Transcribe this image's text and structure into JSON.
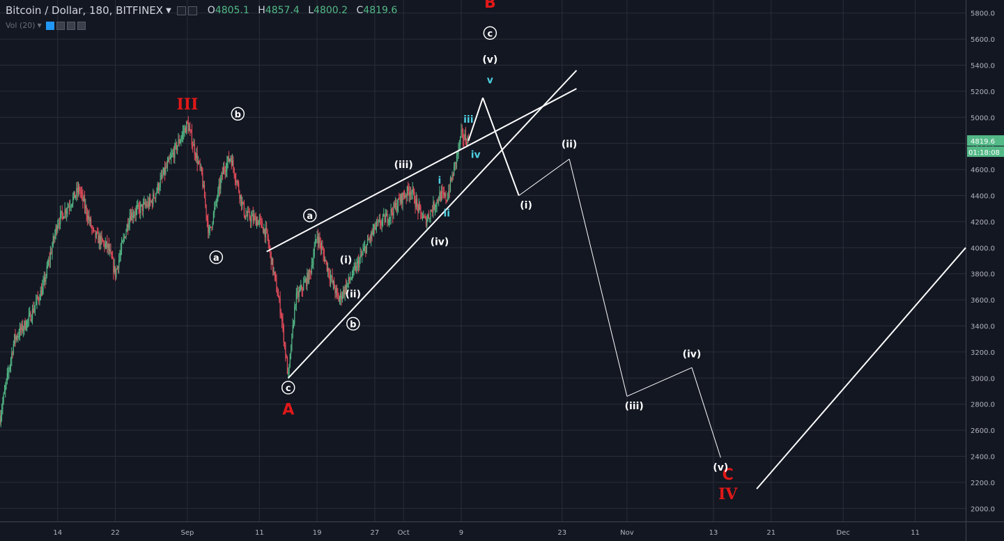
{
  "legend": {
    "symbol": "Bitcoin / Dollar, 180, BITFINEX",
    "open_label": "O",
    "open": "4805.1",
    "high_label": "H",
    "high": "4857.4",
    "low_label": "L",
    "low": "4800.2",
    "close_label": "C",
    "close": "4819.6",
    "volume_label": "Vol (20)"
  },
  "colors": {
    "background": "#131722",
    "grid": "#2a2e39",
    "axis_text": "#b2b5be",
    "up": "#53b987",
    "down": "#eb4d5c",
    "wave_white": "#ffffff",
    "wave_cyan": "#4dd0e1",
    "wave_red": "#e01818",
    "price_tag": "#53b987"
  },
  "price_tag": {
    "price": "4819.6",
    "countdown": "01:18:08"
  },
  "chart_data": {
    "type": "candlestick",
    "xlabel": "",
    "ylabel": "",
    "ylim": [
      1900,
      5900
    ],
    "y_ticks": [
      2000,
      2200,
      2400,
      2600,
      2800,
      3000,
      3200,
      3400,
      3600,
      3800,
      4000,
      4200,
      4400,
      4600,
      4800,
      5000,
      5200,
      5400,
      5600,
      5800
    ],
    "y_tick_labels": [
      "2000.0",
      "2200.0",
      "2400.0",
      "2600.0",
      "2800.0",
      "3000.0",
      "3200.0",
      "3400.0",
      "3600.0",
      "3800.0",
      "4000.0",
      "4200.0",
      "4400.0",
      "4600.0",
      "4800.0",
      "5000.0",
      "5200.0",
      "5400.0",
      "5600.0",
      "5800.0"
    ],
    "x_range": [
      "2017-08-06",
      "2017-12-18"
    ],
    "x_ticks": [
      {
        "date": "2017-08-14",
        "label": "14"
      },
      {
        "date": "2017-08-22",
        "label": "22"
      },
      {
        "date": "2017-09-01",
        "label": "Sep"
      },
      {
        "date": "2017-09-11",
        "label": "11"
      },
      {
        "date": "2017-09-19",
        "label": "19"
      },
      {
        "date": "2017-09-27",
        "label": "27"
      },
      {
        "date": "2017-10-01",
        "label": "Oct"
      },
      {
        "date": "2017-10-09",
        "label": "9"
      },
      {
        "date": "2017-10-23",
        "label": "23"
      },
      {
        "date": "2017-11-01",
        "label": "Nov"
      },
      {
        "date": "2017-11-13",
        "label": "13"
      },
      {
        "date": "2017-11-21",
        "label": "21"
      },
      {
        "date": "2017-12-01",
        "label": "Dec"
      },
      {
        "date": "2017-12-11",
        "label": "11"
      }
    ],
    "price_path": [
      [
        "2017-08-06",
        2700
      ],
      [
        "2017-08-08",
        3300
      ],
      [
        "2017-08-10",
        3450
      ],
      [
        "2017-08-12",
        3700
      ],
      [
        "2017-08-14",
        4200
      ],
      [
        "2017-08-17",
        4450
      ],
      [
        "2017-08-19",
        4100
      ],
      [
        "2017-08-21",
        4000
      ],
      [
        "2017-08-22",
        3800
      ],
      [
        "2017-08-24",
        4250
      ],
      [
        "2017-08-27",
        4350
      ],
      [
        "2017-08-29",
        4600
      ],
      [
        "2017-09-01",
        4950
      ],
      [
        "2017-09-03",
        4550
      ],
      [
        "2017-09-04",
        4100
      ],
      [
        "2017-09-06",
        4600
      ],
      [
        "2017-09-07",
        4700
      ],
      [
        "2017-09-09",
        4250
      ],
      [
        "2017-09-11",
        4200
      ],
      [
        "2017-09-12",
        4100
      ],
      [
        "2017-09-14",
        3500
      ],
      [
        "2017-09-15",
        3000
      ],
      [
        "2017-09-16",
        3600
      ],
      [
        "2017-09-18",
        3800
      ],
      [
        "2017-09-19",
        4100
      ],
      [
        "2017-09-21",
        3750
      ],
      [
        "2017-09-22",
        3600
      ],
      [
        "2017-09-24",
        3800
      ],
      [
        "2017-09-27",
        4150
      ],
      [
        "2017-09-29",
        4250
      ],
      [
        "2017-10-01",
        4400
      ],
      [
        "2017-10-02",
        4450
      ],
      [
        "2017-10-03",
        4300
      ],
      [
        "2017-10-04",
        4200
      ],
      [
        "2017-10-06",
        4400
      ],
      [
        "2017-10-07",
        4380
      ],
      [
        "2017-10-08",
        4600
      ],
      [
        "2017-10-09",
        4860
      ],
      [
        "2017-10-10",
        4820
      ]
    ],
    "lines": [
      {
        "from": [
          "2017-09-12",
          3970
        ],
        "to": [
          "2017-10-25",
          5220
        ]
      },
      {
        "from": [
          "2017-09-15",
          3000
        ],
        "to": [
          "2017-10-25",
          5360
        ]
      },
      {
        "from": [
          "2017-10-10",
          4820
        ],
        "to": [
          "2017-10-12",
          5150
        ]
      },
      {
        "from": [
          "2017-10-12",
          5150
        ],
        "to": [
          "2017-10-17",
          4400
        ]
      },
      {
        "from": [
          "2017-10-17",
          4400
        ],
        "to": [
          "2017-10-24",
          4680
        ]
      },
      {
        "from": [
          "2017-10-24",
          4680
        ],
        "to": [
          "2017-11-01",
          2860
        ]
      },
      {
        "from": [
          "2017-11-01",
          2860
        ],
        "to": [
          "2017-11-10",
          3080
        ]
      },
      {
        "from": [
          "2017-11-10",
          3080
        ],
        "to": [
          "2017-11-14",
          2390
        ]
      },
      {
        "from": [
          "2017-11-19",
          2150
        ],
        "to": [
          "2017-12-18",
          4000
        ]
      }
    ],
    "annotations": [
      {
        "text": "III",
        "date": "2017-09-01",
        "price": 5060,
        "color": "red",
        "style": "roman"
      },
      {
        "text": "B",
        "date": "2017-10-13",
        "price": 5840,
        "color": "red"
      },
      {
        "text": "A",
        "date": "2017-09-15",
        "price": 2720,
        "color": "red"
      },
      {
        "text": "C",
        "date": "2017-11-15",
        "price": 2220,
        "color": "red"
      },
      {
        "text": "IV",
        "date": "2017-11-15",
        "price": 2070,
        "color": "red",
        "style": "roman"
      },
      {
        "text": "c",
        "date": "2017-10-13",
        "price": 5620,
        "color": "white",
        "circled": true
      },
      {
        "text": "(v)",
        "date": "2017-10-13",
        "price": 5420,
        "color": "white"
      },
      {
        "text": "v",
        "date": "2017-10-13",
        "price": 5260,
        "color": "cyan"
      },
      {
        "text": "iii",
        "date": "2017-10-10",
        "price": 4960,
        "color": "cyan"
      },
      {
        "text": "iv",
        "date": "2017-10-11",
        "price": 4690,
        "color": "cyan"
      },
      {
        "text": "(iii)",
        "date": "2017-10-01",
        "price": 4610,
        "color": "white"
      },
      {
        "text": "i",
        "date": "2017-10-06",
        "price": 4490,
        "color": "cyan"
      },
      {
        "text": "ii",
        "date": "2017-10-07",
        "price": 4240,
        "color": "cyan"
      },
      {
        "text": "(iv)",
        "date": "2017-10-06",
        "price": 4020,
        "color": "white"
      },
      {
        "text": "a",
        "date": "2017-09-18",
        "price": 4220,
        "color": "white",
        "circled": true
      },
      {
        "text": "(i)",
        "date": "2017-09-23",
        "price": 3880,
        "color": "white"
      },
      {
        "text": "(ii)",
        "date": "2017-09-24",
        "price": 3620,
        "color": "white"
      },
      {
        "text": "b",
        "date": "2017-09-24",
        "price": 3390,
        "color": "white",
        "circled": true
      },
      {
        "text": "b",
        "date": "2017-09-08",
        "price": 5000,
        "color": "white",
        "circled": true
      },
      {
        "text": "a",
        "date": "2017-09-05",
        "price": 3900,
        "color": "white",
        "circled": true
      },
      {
        "text": "c",
        "date": "2017-09-15",
        "price": 2900,
        "color": "white",
        "circled": true
      },
      {
        "text": "(i)",
        "date": "2017-10-18",
        "price": 4300,
        "color": "white"
      },
      {
        "text": "(ii)",
        "date": "2017-10-24",
        "price": 4770,
        "color": "white"
      },
      {
        "text": "(iii)",
        "date": "2017-11-02",
        "price": 2760,
        "color": "white"
      },
      {
        "text": "(iv)",
        "date": "2017-11-10",
        "price": 3160,
        "color": "white"
      },
      {
        "text": "(v)",
        "date": "2017-11-14",
        "price": 2290,
        "color": "white"
      }
    ],
    "grid": true
  }
}
